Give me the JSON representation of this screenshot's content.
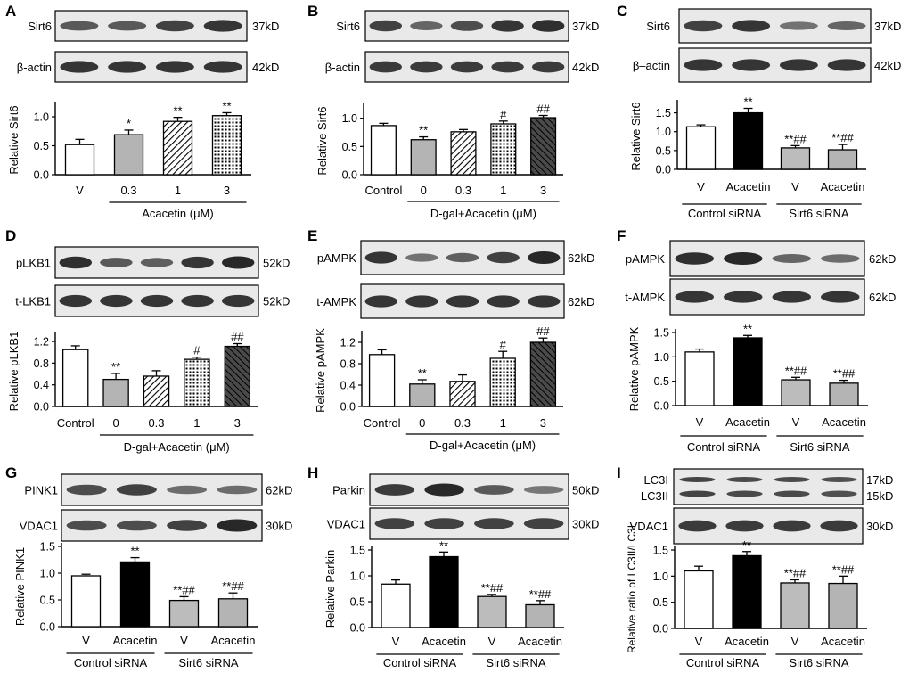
{
  "figure": {
    "panels": [
      {
        "letter": "A",
        "blots": [
          {
            "name": "Sirt6",
            "size": "37kD"
          },
          {
            "name": "β-actin",
            "size": "42kD"
          }
        ]
      },
      {
        "letter": "B",
        "blots": [
          {
            "name": "Sirt6",
            "size": "37kD"
          },
          {
            "name": "β-actin",
            "size": "42kD"
          }
        ]
      },
      {
        "letter": "C",
        "blots": [
          {
            "name": "Sirt6",
            "size": "37kD"
          },
          {
            "name": "β–actin",
            "size": "42kD"
          }
        ]
      },
      {
        "letter": "D",
        "blots": [
          {
            "name": "pLKB1",
            "size": "52kD"
          },
          {
            "name": "t-LKB1",
            "size": "52kD"
          }
        ]
      },
      {
        "letter": "E",
        "blots": [
          {
            "name": "pAMPK",
            "size": "62kD"
          },
          {
            "name": "t-AMPK",
            "size": "62kD"
          }
        ]
      },
      {
        "letter": "F",
        "blots": [
          {
            "name": "pAMPK",
            "size": "62kD"
          },
          {
            "name": "t-AMPK",
            "size": "62kD"
          }
        ]
      },
      {
        "letter": "G",
        "blots": [
          {
            "name": "PINK1",
            "size": "62kD"
          },
          {
            "name": "VDAC1",
            "size": "30kD"
          }
        ]
      },
      {
        "letter": "H",
        "blots": [
          {
            "name": "Parkin",
            "size": "50kD"
          },
          {
            "name": "VDAC1",
            "size": "30kD"
          }
        ]
      },
      {
        "letter": "I",
        "blots": [
          {
            "name": "LC3I",
            "size": "17kD",
            "name2": "LC3II",
            "size2": "15kD"
          },
          {
            "name": "VDAC1",
            "size": "30kD"
          }
        ]
      }
    ]
  },
  "chart_data": [
    {
      "panel": "A",
      "type": "bar",
      "categories": [
        "V",
        "0.3",
        "1",
        "3"
      ],
      "values": [
        0.52,
        0.69,
        0.92,
        1.02
      ],
      "errors": [
        0.09,
        0.08,
        0.07,
        0.05
      ],
      "significance": [
        "",
        "*",
        "**",
        "**"
      ],
      "fills": [
        "white",
        "gray",
        "hatch",
        "dots"
      ],
      "ylabel": "Relative Sirt6",
      "ylim": [
        0,
        1.2
      ],
      "yticks": [
        "0.0",
        "0.5",
        "1.0"
      ],
      "groups": [
        {
          "label": "Acacetin (μM)",
          "from": 1,
          "to": 3
        }
      ]
    },
    {
      "panel": "B",
      "type": "bar",
      "categories": [
        "Control",
        "0",
        "0.3",
        "1",
        "3"
      ],
      "values": [
        0.87,
        0.62,
        0.76,
        0.9,
        1.01
      ],
      "errors": [
        0.04,
        0.05,
        0.04,
        0.05,
        0.04
      ],
      "significance": [
        "",
        "**",
        "",
        "#",
        "##"
      ],
      "fills": [
        "white",
        "gray",
        "hatch",
        "dots",
        "cross"
      ],
      "ylabel": "Relative Sirt6",
      "ylim": [
        0,
        1.2
      ],
      "yticks": [
        "0.0",
        "0.5",
        "1.0"
      ],
      "groups": [
        {
          "label": "D-gal+Acacetin (μM)",
          "from": 1,
          "to": 4
        }
      ]
    },
    {
      "panel": "C",
      "type": "bar",
      "categories": [
        "V",
        "Acacetin",
        "V",
        "Acacetin"
      ],
      "values": [
        1.13,
        1.5,
        0.57,
        0.52
      ],
      "errors": [
        0.05,
        0.12,
        0.06,
        0.14
      ],
      "significance": [
        "",
        "**",
        "**##",
        "**##"
      ],
      "fills": [
        "white",
        "black",
        "lightgray",
        "gray"
      ],
      "ylabel": "Relative Sirt6",
      "ylim": [
        0,
        1.75
      ],
      "yticks": [
        "0.0",
        "0.5",
        "1.0",
        "1.5"
      ],
      "groups": [
        {
          "label": "Control siRNA",
          "from": 0,
          "to": 1
        },
        {
          "label": "Sirt6 siRNA",
          "from": 2,
          "to": 3
        }
      ]
    },
    {
      "panel": "D",
      "type": "bar",
      "categories": [
        "Control",
        "0",
        "0.3",
        "1",
        "3"
      ],
      "values": [
        1.05,
        0.5,
        0.56,
        0.87,
        1.11
      ],
      "errors": [
        0.07,
        0.11,
        0.1,
        0.04,
        0.05
      ],
      "significance": [
        "",
        "**",
        "",
        "#",
        "##"
      ],
      "fills": [
        "white",
        "gray",
        "hatch",
        "dots",
        "cross"
      ],
      "ylabel": "Relative pLKB1",
      "ylim": [
        0,
        1.3
      ],
      "yticks": [
        "0.0",
        "0.4",
        "0.8",
        "1.2"
      ],
      "groups": [
        {
          "label": "D-gal+Acacetin (μM)",
          "from": 1,
          "to": 4
        }
      ]
    },
    {
      "panel": "E",
      "type": "bar",
      "categories": [
        "Control",
        "0",
        "0.3",
        "1",
        "3"
      ],
      "values": [
        0.97,
        0.42,
        0.47,
        0.9,
        1.2
      ],
      "errors": [
        0.09,
        0.08,
        0.12,
        0.13,
        0.08
      ],
      "significance": [
        "",
        "**",
        "",
        "#",
        "##"
      ],
      "fills": [
        "white",
        "gray",
        "hatch",
        "dots",
        "cross"
      ],
      "ylabel": "Relative pAMPK",
      "ylim": [
        0,
        1.35
      ],
      "yticks": [
        "0.0",
        "0.4",
        "0.8",
        "1.2"
      ],
      "groups": [
        {
          "label": "D-gal+Acacetin (μM)",
          "from": 1,
          "to": 4
        }
      ]
    },
    {
      "panel": "F",
      "type": "bar",
      "categories": [
        "V",
        "Acacetin",
        "V",
        "Acacetin"
      ],
      "values": [
        1.1,
        1.39,
        0.53,
        0.46
      ],
      "errors": [
        0.06,
        0.05,
        0.05,
        0.06
      ],
      "significance": [
        "",
        "**",
        "**##",
        "**##"
      ],
      "fills": [
        "white",
        "black",
        "lightgray",
        "gray"
      ],
      "ylabel": "Relative pAMPK",
      "ylim": [
        0,
        1.5
      ],
      "yticks": [
        "0.0",
        "0.5",
        "1.0",
        "1.5"
      ],
      "groups": [
        {
          "label": "Control siRNA",
          "from": 0,
          "to": 1
        },
        {
          "label": "Sirt6 siRNA",
          "from": 2,
          "to": 3
        }
      ]
    },
    {
      "panel": "G",
      "type": "bar",
      "categories": [
        "V",
        "Acacetin",
        "V",
        "Acacetin"
      ],
      "values": [
        0.95,
        1.21,
        0.49,
        0.52
      ],
      "errors": [
        0.03,
        0.08,
        0.07,
        0.11
      ],
      "significance": [
        "",
        "**",
        "**##",
        "**##"
      ],
      "fills": [
        "white",
        "black",
        "lightgray",
        "gray"
      ],
      "ylabel": "Relative PINK1",
      "ylim": [
        0,
        1.5
      ],
      "yticks": [
        "0.0",
        "0.5",
        "1.0",
        "1.5"
      ],
      "groups": [
        {
          "label": "Control siRNA",
          "from": 0,
          "to": 1
        },
        {
          "label": "Sirt6 siRNA",
          "from": 2,
          "to": 3
        }
      ]
    },
    {
      "panel": "H",
      "type": "bar",
      "categories": [
        "V",
        "Acacetin",
        "V",
        "Acacetin"
      ],
      "values": [
        0.84,
        1.37,
        0.6,
        0.44
      ],
      "errors": [
        0.08,
        0.09,
        0.04,
        0.08
      ],
      "significance": [
        "",
        "**",
        "**##",
        "**##"
      ],
      "fills": [
        "white",
        "black",
        "lightgray",
        "gray"
      ],
      "ylabel": "Relative Parkin",
      "ylim": [
        0,
        1.5
      ],
      "yticks": [
        "0.0",
        "0.5",
        "1.0",
        "1.5"
      ],
      "groups": [
        {
          "label": "Control siRNA",
          "from": 0,
          "to": 1
        },
        {
          "label": "Sirt6 siRNA",
          "from": 2,
          "to": 3
        }
      ]
    },
    {
      "panel": "I",
      "type": "bar",
      "categories": [
        "V",
        "Acacetin",
        "V",
        "Acacetin"
      ],
      "values": [
        1.1,
        1.39,
        0.87,
        0.86
      ],
      "errors": [
        0.09,
        0.08,
        0.06,
        0.14
      ],
      "significance": [
        "",
        "**",
        "**##",
        "**##"
      ],
      "fills": [
        "white",
        "black",
        "lightgray",
        "gray"
      ],
      "ylabel": "Relative ratio of LC3II/LC3I",
      "ylim": [
        0,
        1.5
      ],
      "yticks": [
        "0.0",
        "0.5",
        "1.0",
        "1.5"
      ],
      "groups": [
        {
          "label": "Control siRNA",
          "from": 0,
          "to": 1
        },
        {
          "label": "Sirt6 siRNA",
          "from": 2,
          "to": 3
        }
      ]
    }
  ]
}
